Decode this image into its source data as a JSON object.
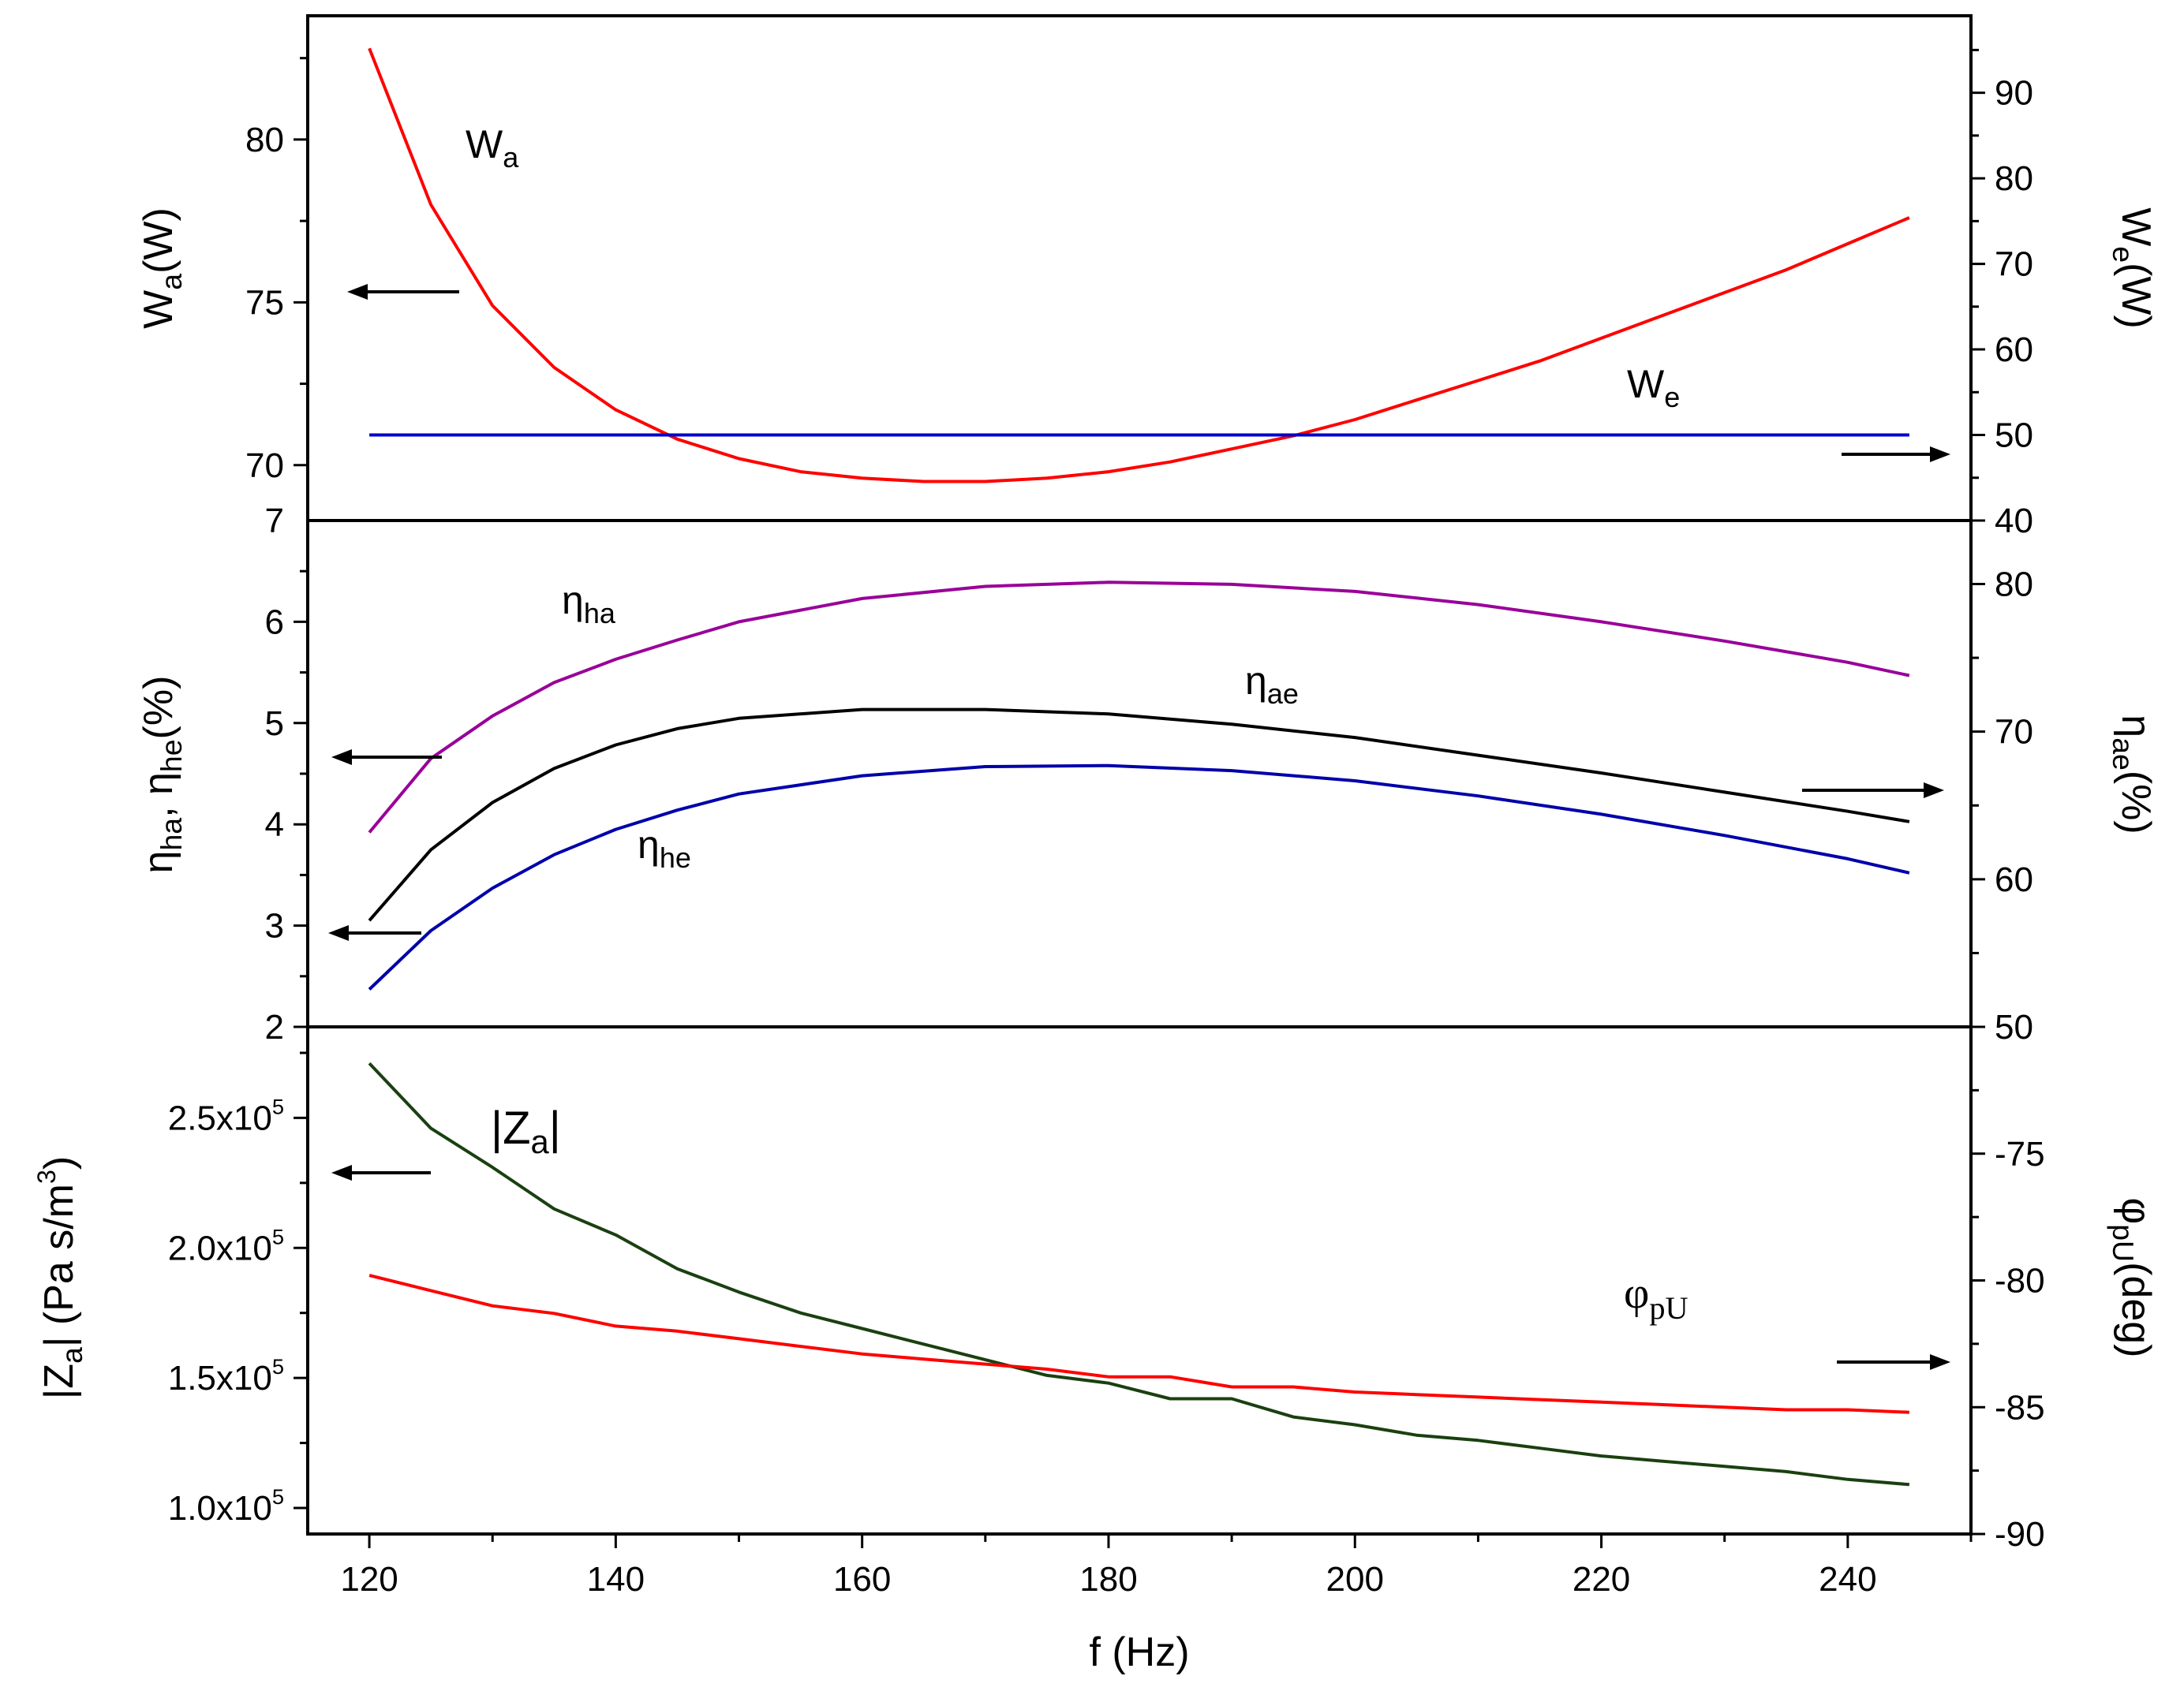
{
  "chart_data": {
    "type": "line",
    "x_axis": {
      "label": "f (Hz)",
      "range": [
        115,
        250
      ],
      "ticks": [
        "120",
        "140",
        "160",
        "180",
        "200",
        "220",
        "240"
      ]
    },
    "panels": [
      {
        "id": "power",
        "left_axis": {
          "label": {
            "base": "W",
            "sub": "a",
            "rest": "(W)"
          },
          "range": [
            68.3,
            83.8
          ],
          "ticks": [
            "70",
            "75",
            "80"
          ],
          "bottom_tick_label": "7"
        },
        "right_axis": {
          "label": {
            "base": "W",
            "sub": "e",
            "rest": "(W)"
          },
          "range": [
            40,
            99
          ],
          "ticks": [
            "40",
            "50",
            "60",
            "70",
            "80",
            "90"
          ]
        },
        "series": [
          {
            "name": "Wa",
            "label": {
              "base": "W",
              "sub": "a"
            },
            "axis": "left",
            "color": "#ff0000",
            "x": [
              120,
              125,
              130,
              135,
              140,
              145,
              150,
              155,
              160,
              165,
              170,
              175,
              180,
              185,
              190,
              195,
              200,
              205,
              210,
              215,
              220,
              225,
              230,
              235,
              240,
              245
            ],
            "y": [
              82.8,
              78.0,
              74.9,
              73.0,
              71.7,
              70.8,
              70.2,
              69.8,
              69.6,
              69.5,
              69.5,
              69.6,
              69.8,
              70.1,
              70.5,
              70.9,
              71.4,
              72.0,
              72.6,
              73.2,
              73.9,
              74.6,
              75.3,
              76.0,
              76.8,
              77.6
            ]
          },
          {
            "name": "We",
            "label": {
              "base": "W",
              "sub": "e"
            },
            "axis": "right",
            "color": "#0000cc",
            "x": [
              120,
              245
            ],
            "y": [
              50,
              50
            ]
          }
        ]
      },
      {
        "id": "efficiency",
        "left_axis": {
          "label": {
            "eta": "η",
            "sub1": "ha",
            "sep": ", ",
            "eta2": "η",
            "sub2": "he",
            "rest": "(%)"
          },
          "range": [
            2,
            7
          ],
          "ticks": [
            "2",
            "3",
            "4",
            "5",
            "6"
          ]
        },
        "right_axis": {
          "label": {
            "eta": "η",
            "sub": "ae",
            "rest": "(%)"
          },
          "range": [
            50,
            84.3
          ],
          "ticks": [
            "50",
            "60",
            "70",
            "80"
          ]
        },
        "series": [
          {
            "name": "eta_ha",
            "label": {
              "eta": "η",
              "sub": "ha"
            },
            "axis": "left",
            "color": "#990099",
            "x": [
              120,
              125,
              130,
              135,
              140,
              145,
              150,
              160,
              170,
              180,
              190,
              200,
              210,
              220,
              230,
              240,
              245
            ],
            "y": [
              3.92,
              4.65,
              5.07,
              5.4,
              5.63,
              5.82,
              6.0,
              6.23,
              6.35,
              6.39,
              6.37,
              6.3,
              6.17,
              6.0,
              5.81,
              5.6,
              5.47
            ]
          },
          {
            "name": "eta_ae",
            "label": {
              "eta": "η",
              "sub": "ae"
            },
            "axis": "right",
            "color": "#000000",
            "x": [
              120,
              125,
              130,
              135,
              140,
              145,
              150,
              160,
              170,
              180,
              190,
              200,
              210,
              220,
              230,
              240,
              245
            ],
            "y": [
              57.2,
              62.0,
              65.2,
              67.5,
              69.1,
              70.2,
              70.9,
              71.5,
              71.5,
              71.2,
              70.5,
              69.6,
              68.4,
              67.2,
              65.9,
              64.6,
              63.9
            ]
          },
          {
            "name": "eta_he",
            "label": {
              "eta": "η",
              "sub": "he"
            },
            "axis": "left",
            "color": "#0000aa",
            "x": [
              120,
              125,
              130,
              135,
              140,
              145,
              150,
              160,
              170,
              180,
              190,
              200,
              210,
              220,
              230,
              240,
              245
            ],
            "y": [
              2.37,
              2.95,
              3.37,
              3.7,
              3.95,
              4.14,
              4.3,
              4.48,
              4.57,
              4.58,
              4.53,
              4.43,
              4.28,
              4.1,
              3.89,
              3.66,
              3.52
            ]
          }
        ]
      },
      {
        "id": "impedance",
        "left_axis": {
          "label": {
            "open": "|Z",
            "sub": "a",
            "close": "| (Pa s/m",
            "sup": "3",
            "end": ")"
          },
          "range": [
            90000,
            285000
          ],
          "ticks": [
            {
              "mantissa": "1.0x10",
              "exp": "5",
              "value": 100000
            },
            {
              "mantissa": "1.5x10",
              "exp": "5",
              "value": 150000
            },
            {
              "mantissa": "2.0x10",
              "exp": "5",
              "value": 200000
            },
            {
              "mantissa": "2.5x10",
              "exp": "5",
              "value": 250000
            }
          ]
        },
        "right_axis": {
          "label": {
            "phi": "φ",
            "sub": "pU",
            "rest": "(deg)"
          },
          "range": [
            -90,
            -70
          ],
          "ticks": [
            "-90",
            "-85",
            "-80",
            "-75"
          ]
        },
        "series": [
          {
            "name": "Za",
            "label": {
              "open": "|Z",
              "sub": "a",
              "close": "|"
            },
            "axis": "left",
            "color": "#1a4010",
            "x": [
              120,
              125,
              130,
              135,
              140,
              145,
              150,
              155,
              160,
              165,
              170,
              175,
              180,
              185,
              190,
              195,
              200,
              205,
              210,
              215,
              220,
              225,
              230,
              235,
              240,
              245
            ],
            "y": [
              271000,
              246000,
              231000,
              215000,
              205000,
              192000,
              183000,
              175000,
              169000,
              163000,
              157000,
              151000,
              148000,
              142000,
              142000,
              135000,
              132000,
              128000,
              126000,
              123000,
              120000,
              118000,
              116000,
              114000,
              111000,
              109000
            ]
          },
          {
            "name": "phi_pU",
            "label": {
              "phi": "φ",
              "sub": "pU"
            },
            "axis": "right",
            "color": "#ff0000",
            "x": [
              120,
              125,
              130,
              135,
              140,
              145,
              150,
              155,
              160,
              165,
              170,
              175,
              180,
              185,
              190,
              195,
              200,
              205,
              210,
              215,
              220,
              225,
              230,
              235,
              240,
              245
            ],
            "y": [
              -79.8,
              -80.4,
              -81.0,
              -81.3,
              -81.8,
              -82.0,
              -82.3,
              -82.6,
              -82.9,
              -83.1,
              -83.3,
              -83.5,
              -83.8,
              -83.8,
              -84.2,
              -84.2,
              -84.4,
              -84.5,
              -84.6,
              -84.7,
              -84.8,
              -84.9,
              -85.0,
              -85.1,
              -85.1,
              -85.2
            ]
          }
        ]
      }
    ]
  }
}
